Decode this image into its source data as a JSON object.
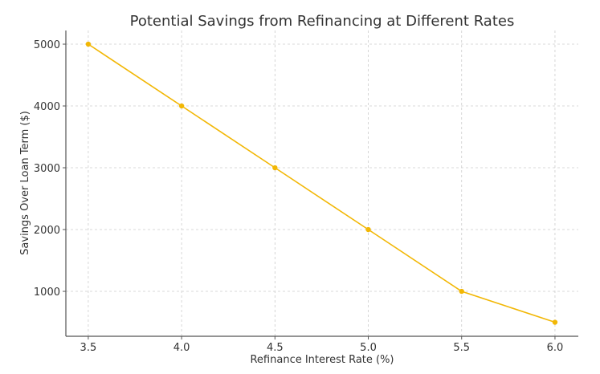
{
  "chart_data": {
    "type": "line",
    "title": "Potential Savings from Refinancing at Different Rates",
    "xlabel": "Refinance Interest Rate (%)",
    "ylabel": "Savings Over Loan Term ($)",
    "x": [
      3.5,
      4.0,
      4.5,
      5.0,
      5.5,
      6.0
    ],
    "series": [
      {
        "values": [
          5000,
          4000,
          3000,
          2000,
          1000,
          500
        ],
        "color": "#f2b705",
        "marker": "circle"
      }
    ],
    "xlim": [
      3.38,
      6.125
    ],
    "ylim": [
      273,
      5221
    ],
    "xticks": [
      "3.5",
      "4.0",
      "4.5",
      "5.0",
      "5.5",
      "6.0"
    ],
    "yticks": [
      "1000",
      "2000",
      "3000",
      "4000",
      "5000"
    ],
    "grid": true,
    "legend": "none"
  }
}
